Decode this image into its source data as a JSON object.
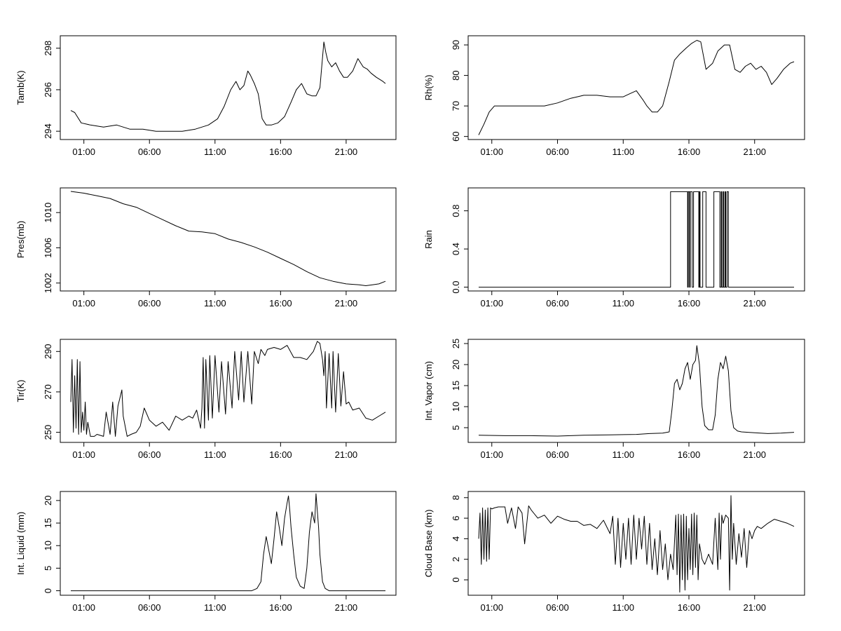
{
  "chart_data": [
    {
      "type": "line",
      "ylabel": "Tamb(K)",
      "x_ticks": [
        "01:00",
        "06:00",
        "11:00",
        "16:00",
        "21:00"
      ],
      "x_tick_hours": [
        1,
        6,
        11,
        16,
        21
      ],
      "xlim_hours": [
        -0.8,
        24.8
      ],
      "y_ticks": [
        294,
        296,
        298
      ],
      "ylim": [
        293.6,
        298.6
      ],
      "series": [
        {
          "x": [
            0,
            0.3,
            0.8,
            1.5,
            2.5,
            3.5,
            4.5,
            5.5,
            6.5,
            7.5,
            8.5,
            9.5,
            10.5,
            11.2,
            11.7,
            12.2,
            12.6,
            12.9,
            13.2,
            13.5,
            13.7,
            14.0,
            14.3,
            14.6,
            14.9,
            15.3,
            15.8,
            16.3,
            16.8,
            17.2,
            17.6,
            18.0,
            18.4,
            18.7,
            19.0,
            19.3,
            19.45,
            19.6,
            19.9,
            20.2,
            20.5,
            20.8,
            21.1,
            21.5,
            21.9,
            22.3,
            22.6,
            22.9,
            23.3,
            23.8,
            24.0
          ],
          "y": [
            295.0,
            294.9,
            294.4,
            294.3,
            294.2,
            294.3,
            294.1,
            294.1,
            294.0,
            294.0,
            294.0,
            294.1,
            294.3,
            294.6,
            295.2,
            296.0,
            296.4,
            296.0,
            296.2,
            296.9,
            296.7,
            296.3,
            295.8,
            294.6,
            294.3,
            294.3,
            294.4,
            294.7,
            295.4,
            296.0,
            296.3,
            295.8,
            295.7,
            295.7,
            296.1,
            298.3,
            297.8,
            297.4,
            297.1,
            297.3,
            296.9,
            296.6,
            296.6,
            296.9,
            297.5,
            297.1,
            297.0,
            296.8,
            296.6,
            296.4,
            296.3
          ]
        }
      ]
    },
    {
      "type": "line",
      "ylabel": "Rh(%)",
      "x_ticks": [
        "01:00",
        "06:00",
        "11:00",
        "16:00",
        "21:00"
      ],
      "x_tick_hours": [
        1,
        6,
        11,
        16,
        21
      ],
      "xlim_hours": [
        -0.8,
        24.8
      ],
      "y_ticks": [
        60,
        70,
        80,
        90
      ],
      "ylim": [
        59,
        93
      ],
      "series": [
        {
          "x": [
            0,
            0.4,
            0.8,
            1.2,
            2,
            3,
            4,
            5,
            6,
            7,
            7.5,
            8,
            9,
            10,
            11,
            11.5,
            12,
            12.5,
            12.8,
            13.2,
            13.6,
            14.0,
            14.5,
            14.9,
            15.3,
            15.8,
            16.2,
            16.6,
            16.9,
            17.3,
            17.8,
            18.2,
            18.7,
            19.1,
            19.5,
            19.9,
            20.3,
            20.7,
            21.1,
            21.5,
            21.9,
            22.3,
            22.7,
            23.2,
            23.7,
            24.0
          ],
          "y": [
            60.5,
            64,
            68,
            70,
            70,
            70,
            70,
            70,
            71,
            72.5,
            73,
            73.5,
            73.5,
            73,
            73,
            74,
            75,
            72,
            70,
            68,
            68,
            70,
            78,
            85,
            87,
            89,
            90.5,
            91.5,
            91,
            82,
            84,
            88,
            90,
            90,
            82,
            81,
            83,
            84,
            82,
            83,
            81,
            77,
            79,
            82,
            84,
            84.5
          ]
        }
      ]
    },
    {
      "type": "line",
      "ylabel": "Pres(mb)",
      "x_ticks": [
        "01:00",
        "06:00",
        "11:00",
        "16:00",
        "21:00"
      ],
      "x_tick_hours": [
        1,
        6,
        11,
        16,
        21
      ],
      "xlim_hours": [
        -0.8,
        24.8
      ],
      "y_ticks": [
        1002,
        1006,
        1010
      ],
      "ylim": [
        1001.1,
        1012.8
      ],
      "series": [
        {
          "x": [
            0,
            1,
            2,
            3,
            4,
            5,
            6,
            7,
            8,
            9,
            10,
            11,
            12,
            13,
            14,
            15,
            16,
            17,
            18,
            19,
            20,
            21,
            22,
            22.5,
            23,
            23.5,
            24
          ],
          "y": [
            1012.4,
            1012.2,
            1011.9,
            1011.6,
            1011.0,
            1010.6,
            1009.9,
            1009.2,
            1008.5,
            1007.9,
            1007.8,
            1007.6,
            1007.0,
            1006.6,
            1006.1,
            1005.5,
            1004.8,
            1004.1,
            1003.3,
            1002.6,
            1002.2,
            1001.9,
            1001.8,
            1001.7,
            1001.8,
            1001.9,
            1002.2
          ]
        }
      ]
    },
    {
      "type": "line",
      "ylabel": "Rain",
      "x_ticks": [
        "01:00",
        "06:00",
        "11:00",
        "16:00",
        "21:00"
      ],
      "x_tick_hours": [
        1,
        6,
        11,
        16,
        21
      ],
      "xlim_hours": [
        -0.8,
        24.8
      ],
      "y_ticks": [
        0.0,
        0.4,
        0.8
      ],
      "y_tick_labels": [
        "0.0",
        "0.4",
        "0.8"
      ],
      "ylim": [
        -0.04,
        1.04
      ],
      "series": [
        {
          "x": [
            0,
            14.6,
            14.6,
            15.9,
            15.9,
            15.95,
            15.95,
            16.05,
            16.05,
            16.1,
            16.1,
            16.25,
            16.25,
            16.35,
            16.35,
            16.75,
            16.75,
            16.8,
            16.8,
            16.85,
            16.85,
            17.05,
            17.05,
            17.3,
            17.3,
            17.9,
            17.9,
            18.35,
            18.35,
            18.45,
            18.45,
            18.5,
            18.5,
            18.6,
            18.6,
            18.65,
            18.65,
            18.75,
            18.75,
            18.8,
            18.8,
            18.9,
            18.9,
            19.0,
            19.0,
            24.0
          ],
          "y": [
            0,
            0,
            1,
            1,
            0,
            0,
            1,
            1,
            0,
            0,
            1,
            1,
            0,
            0,
            1,
            1,
            0,
            0,
            1,
            1,
            0,
            0,
            1,
            1,
            0,
            0,
            1,
            1,
            0,
            0,
            1,
            1,
            0,
            0,
            1,
            1,
            0,
            0,
            1,
            1,
            0,
            0,
            1,
            1,
            0,
            0
          ]
        }
      ]
    },
    {
      "type": "line",
      "ylabel": "Tir(K)",
      "x_ticks": [
        "01:00",
        "06:00",
        "11:00",
        "16:00",
        "21:00"
      ],
      "x_tick_hours": [
        1,
        6,
        11,
        16,
        21
      ],
      "xlim_hours": [
        -0.8,
        24.8
      ],
      "y_ticks": [
        250,
        270,
        290
      ],
      "ylim": [
        245,
        296
      ],
      "series": [
        {
          "x": [
            0,
            0.1,
            0.2,
            0.3,
            0.4,
            0.5,
            0.6,
            0.7,
            0.8,
            0.9,
            1.0,
            1.1,
            1.2,
            1.3,
            1.5,
            1.8,
            2.0,
            2.5,
            2.7,
            3.0,
            3.2,
            3.4,
            3.6,
            3.9,
            4.0,
            4.3,
            4.6,
            5.0,
            5.3,
            5.6,
            6.0,
            6.5,
            7.0,
            7.5,
            8.0,
            8.5,
            9.0,
            9.3,
            9.6,
            9.9,
            10.0,
            10.1,
            10.2,
            10.3,
            10.5,
            10.6,
            10.8,
            11.0,
            11.3,
            11.5,
            11.8,
            12.0,
            12.3,
            12.5,
            12.8,
            13.0,
            13.2,
            13.5,
            13.8,
            14.0,
            14.3,
            14.5,
            14.8,
            15.0,
            15.5,
            16.0,
            16.5,
            17.0,
            17.5,
            18.0,
            18.5,
            18.8,
            19.0,
            19.2,
            19.3,
            19.4,
            19.5,
            19.7,
            19.9,
            20.0,
            20.2,
            20.4,
            20.6,
            20.8,
            21.0,
            21.2,
            21.5,
            22.0,
            22.5,
            23.0,
            23.5,
            24.0
          ],
          "y": [
            265,
            286,
            250,
            278,
            252,
            286,
            249,
            285,
            250,
            260,
            251,
            265,
            249,
            255,
            248,
            248,
            249,
            248,
            260,
            249,
            265,
            248,
            263,
            271,
            258,
            248,
            249,
            250,
            253,
            262,
            256,
            253,
            255,
            251,
            258,
            256,
            258,
            257,
            261,
            252,
            262,
            287,
            252,
            286,
            256,
            288,
            257,
            288,
            260,
            285,
            259,
            285,
            262,
            290,
            266,
            290,
            265,
            290,
            264,
            290,
            284,
            291,
            288,
            291,
            292,
            291,
            293,
            287,
            287,
            286,
            290,
            295,
            294,
            286,
            278,
            290,
            262,
            289,
            262,
            290,
            260,
            289,
            263,
            280,
            264,
            265,
            261,
            262,
            257,
            256,
            258,
            260
          ]
        }
      ]
    },
    {
      "type": "line",
      "ylabel": "Int. Vapor (cm)",
      "x_ticks": [
        "01:00",
        "06:00",
        "11:00",
        "16:00",
        "21:00"
      ],
      "x_tick_hours": [
        1,
        6,
        11,
        16,
        21
      ],
      "xlim_hours": [
        -0.8,
        24.8
      ],
      "y_ticks": [
        5,
        10,
        15,
        20,
        25
      ],
      "ylim": [
        1.5,
        26
      ],
      "series": [
        {
          "x": [
            0,
            2,
            4,
            6,
            8,
            10,
            12,
            13,
            14,
            14.5,
            14.7,
            14.9,
            15.1,
            15.3,
            15.5,
            15.7,
            15.9,
            16.1,
            16.3,
            16.5,
            16.6,
            16.8,
            17.0,
            17.2,
            17.5,
            17.8,
            18.0,
            18.2,
            18.4,
            18.6,
            18.8,
            19.0,
            19.2,
            19.4,
            19.7,
            20.0,
            21.0,
            22.0,
            23.0,
            24.0
          ],
          "y": [
            3.2,
            3.1,
            3.1,
            3.0,
            3.2,
            3.3,
            3.4,
            3.6,
            3.7,
            4.0,
            9.0,
            15.5,
            16.5,
            14.0,
            15.5,
            19.0,
            20.5,
            16.5,
            20.0,
            21.0,
            24.5,
            20.0,
            10.0,
            5.5,
            4.5,
            4.5,
            8.0,
            16.5,
            20.5,
            19.0,
            22.0,
            18.5,
            9.0,
            5.0,
            4.2,
            4.0,
            3.8,
            3.6,
            3.7,
            3.9
          ]
        }
      ]
    },
    {
      "type": "line",
      "ylabel": "Int. Liquid (mm)",
      "x_ticks": [
        "01:00",
        "06:00",
        "11:00",
        "16:00",
        "21:00"
      ],
      "x_tick_hours": [
        1,
        6,
        11,
        16,
        21
      ],
      "xlim_hours": [
        -0.8,
        24.8
      ],
      "y_ticks": [
        0,
        5,
        10,
        15,
        20
      ],
      "ylim": [
        -1,
        22
      ],
      "series": [
        {
          "x": [
            0,
            13.8,
            14.2,
            14.5,
            14.7,
            14.9,
            15.1,
            15.3,
            15.5,
            15.7,
            15.9,
            16.1,
            16.3,
            16.5,
            16.6,
            16.7,
            16.8,
            17.0,
            17.2,
            17.5,
            17.8,
            18.0,
            18.2,
            18.4,
            18.6,
            18.7,
            18.9,
            19.0,
            19.2,
            19.4,
            19.7,
            24.0
          ],
          "y": [
            0,
            0,
            0.5,
            2.0,
            8.0,
            12.0,
            9.0,
            6.0,
            11.5,
            17.5,
            14.0,
            10.0,
            16.0,
            19.5,
            21.0,
            18.0,
            14.0,
            8.0,
            3.0,
            1.0,
            0.5,
            5.0,
            13.0,
            17.5,
            15.0,
            21.5,
            14.0,
            8.0,
            2.0,
            0.5,
            0,
            0
          ]
        }
      ]
    },
    {
      "type": "line",
      "ylabel": "Cloud Base (km)",
      "x_ticks": [
        "01:00",
        "06:00",
        "11:00",
        "16:00",
        "21:00"
      ],
      "x_tick_hours": [
        1,
        6,
        11,
        16,
        21
      ],
      "xlim_hours": [
        -0.8,
        24.8
      ],
      "y_ticks": [
        0,
        2,
        4,
        6,
        8
      ],
      "ylim": [
        -1.5,
        8.6
      ],
      "series": [
        {
          "x": [
            0,
            0.1,
            0.2,
            0.3,
            0.4,
            0.5,
            0.6,
            0.7,
            0.8,
            0.9,
            1.0,
            1.2,
            1.5,
            2.0,
            2.2,
            2.5,
            2.8,
            3.0,
            3.3,
            3.5,
            3.8,
            4.0,
            4.5,
            5.0,
            5.5,
            6.0,
            6.5,
            7.0,
            7.5,
            8.0,
            8.5,
            9.0,
            9.5,
            10.0,
            10.2,
            10.4,
            10.6,
            10.8,
            11.0,
            11.2,
            11.4,
            11.6,
            11.8,
            12.0,
            12.2,
            12.4,
            12.6,
            12.8,
            13.0,
            13.2,
            13.4,
            13.6,
            13.8,
            14.0,
            14.2,
            14.4,
            14.6,
            14.8,
            15.0,
            15.1,
            15.2,
            15.3,
            15.4,
            15.5,
            15.6,
            15.7,
            15.8,
            15.9,
            16.0,
            16.1,
            16.2,
            16.3,
            16.4,
            16.5,
            16.6,
            16.7,
            16.8,
            17.0,
            17.2,
            17.5,
            17.8,
            18.0,
            18.2,
            18.3,
            18.4,
            18.5,
            18.6,
            18.8,
            19.0,
            19.1,
            19.2,
            19.3,
            19.4,
            19.6,
            19.8,
            20.0,
            20.2,
            20.4,
            20.6,
            20.8,
            21.0,
            21.2,
            21.5,
            22.0,
            22.5,
            23.0,
            23.5,
            24.0
          ],
          "y": [
            4.0,
            6.5,
            1.5,
            7.0,
            2.0,
            6.8,
            1.8,
            7.0,
            2.0,
            7.0,
            6.9,
            7.0,
            7.1,
            7.1,
            5.5,
            7.0,
            5.0,
            7.1,
            6.5,
            3.5,
            7.2,
            6.8,
            6.0,
            6.3,
            5.5,
            6.2,
            5.9,
            5.7,
            5.7,
            5.3,
            5.4,
            5.0,
            5.8,
            4.5,
            6.2,
            1.5,
            6.0,
            1.2,
            5.5,
            2.0,
            6.0,
            1.5,
            6.3,
            2.0,
            6.0,
            3.0,
            6.2,
            1.5,
            5.5,
            1.0,
            4.0,
            0.5,
            4.8,
            1.0,
            3.5,
            0.0,
            2.5,
            1.0,
            6.3,
            0.5,
            6.4,
            -1.2,
            6.3,
            0.0,
            6.4,
            -1.0,
            6.2,
            0.0,
            5.0,
            1.0,
            6.4,
            0.5,
            6.5,
            1.2,
            6.3,
            0.0,
            3.5,
            2.0,
            1.5,
            2.5,
            1.5,
            6.0,
            1.0,
            6.5,
            2.0,
            6.3,
            5.5,
            6.3,
            6.0,
            -1.0,
            8.2,
            2.0,
            5.5,
            1.5,
            4.5,
            2.2,
            5.0,
            1.2,
            4.8,
            4.0,
            4.8,
            5.2,
            5.0,
            5.5,
            5.9,
            5.7,
            5.5,
            5.2
          ]
        }
      ]
    }
  ]
}
